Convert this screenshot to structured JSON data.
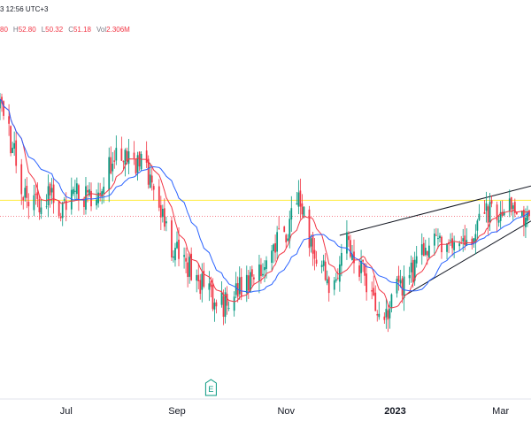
{
  "header": {
    "time_text": "3 12:56 UTC+3",
    "ohlc": [
      {
        "key": "",
        "value": "80"
      },
      {
        "key": "H",
        "value": "52.80"
      },
      {
        "key": "L",
        "value": "50.32"
      },
      {
        "key": "C",
        "value": "51.18"
      },
      {
        "key": "Vol",
        "value": "2.306M"
      }
    ]
  },
  "colors": {
    "up": "#089981",
    "down": "#f23645",
    "ma_fast": "#f23645",
    "ma_slow": "#2962ff",
    "horizontal_line": "#ffeb3b",
    "price_line": "#f23645",
    "trendline": "#131722"
  },
  "event_marker": {
    "label": "E",
    "date": "2022-09-20"
  },
  "chart_data": {
    "type": "candlestick",
    "title": "",
    "x_ticks": [
      {
        "label": "Jul",
        "date": "2022-07-01"
      },
      {
        "label": "Sep",
        "date": "2022-09-01"
      },
      {
        "label": "Nov",
        "date": "2022-11-01"
      },
      {
        "label": "2023",
        "date": "2023-01-01",
        "bold": true
      },
      {
        "label": "Mar",
        "date": "2023-03-01"
      }
    ],
    "ylim": [
      44,
      66
    ],
    "xlim": [
      "2022-05-25",
      "2023-03-18"
    ],
    "series": [
      {
        "name": "Price",
        "type": "candlestick",
        "anchors": [
          [
            "2022-05-25",
            62.0
          ],
          [
            "2022-06-01",
            59.5
          ],
          [
            "2022-06-08",
            56.5
          ],
          [
            "2022-06-14",
            55.8
          ],
          [
            "2022-06-22",
            56.6
          ],
          [
            "2022-06-29",
            55.4
          ],
          [
            "2022-07-06",
            56.8
          ],
          [
            "2022-07-13",
            56.2
          ],
          [
            "2022-07-20",
            57.3
          ],
          [
            "2022-07-27",
            58.7
          ],
          [
            "2022-08-03",
            58.9
          ],
          [
            "2022-08-10",
            58.6
          ],
          [
            "2022-08-17",
            57.6
          ],
          [
            "2022-08-22",
            55.6
          ],
          [
            "2022-08-29",
            53.1
          ],
          [
            "2022-09-06",
            52.3
          ],
          [
            "2022-09-13",
            51.2
          ],
          [
            "2022-09-20",
            50.1
          ],
          [
            "2022-09-27",
            49.6
          ],
          [
            "2022-10-04",
            50.7
          ],
          [
            "2022-10-11",
            51.3
          ],
          [
            "2022-10-18",
            52.2
          ],
          [
            "2022-10-25",
            53.3
          ],
          [
            "2022-11-01",
            54.2
          ],
          [
            "2022-11-08",
            56.2
          ],
          [
            "2022-11-14",
            53.8
          ],
          [
            "2022-11-21",
            52.1
          ],
          [
            "2022-11-28",
            50.4
          ],
          [
            "2022-12-05",
            53.6
          ],
          [
            "2022-12-12",
            52.1
          ],
          [
            "2022-12-19",
            50.3
          ],
          [
            "2022-12-26",
            48.9
          ],
          [
            "2023-01-02",
            50.7
          ],
          [
            "2023-01-09",
            51.4
          ],
          [
            "2023-01-16",
            52.9
          ],
          [
            "2023-01-23",
            53.6
          ],
          [
            "2023-01-30",
            53.1
          ],
          [
            "2023-02-06",
            54.0
          ],
          [
            "2023-02-13",
            53.6
          ],
          [
            "2023-02-20",
            55.6
          ],
          [
            "2023-02-27",
            55.3
          ],
          [
            "2023-03-06",
            56.3
          ],
          [
            "2023-03-13",
            55.5
          ],
          [
            "2023-03-18",
            55.3
          ]
        ]
      },
      {
        "name": "MA fast",
        "type": "line",
        "period": 10
      },
      {
        "name": "MA slow",
        "type": "line",
        "period": 22
      }
    ],
    "overlays": {
      "horizontal_level": 56.2,
      "last_price": 55.2,
      "trendline_upper": [
        [
          "2022-12-01",
          54.0
        ],
        [
          "2023-03-18",
          57.1
        ]
      ],
      "trendline_lower": [
        [
          "2023-01-06",
          50.2
        ],
        [
          "2023-03-18",
          54.9
        ]
      ]
    },
    "grid": false,
    "legend": "none"
  }
}
